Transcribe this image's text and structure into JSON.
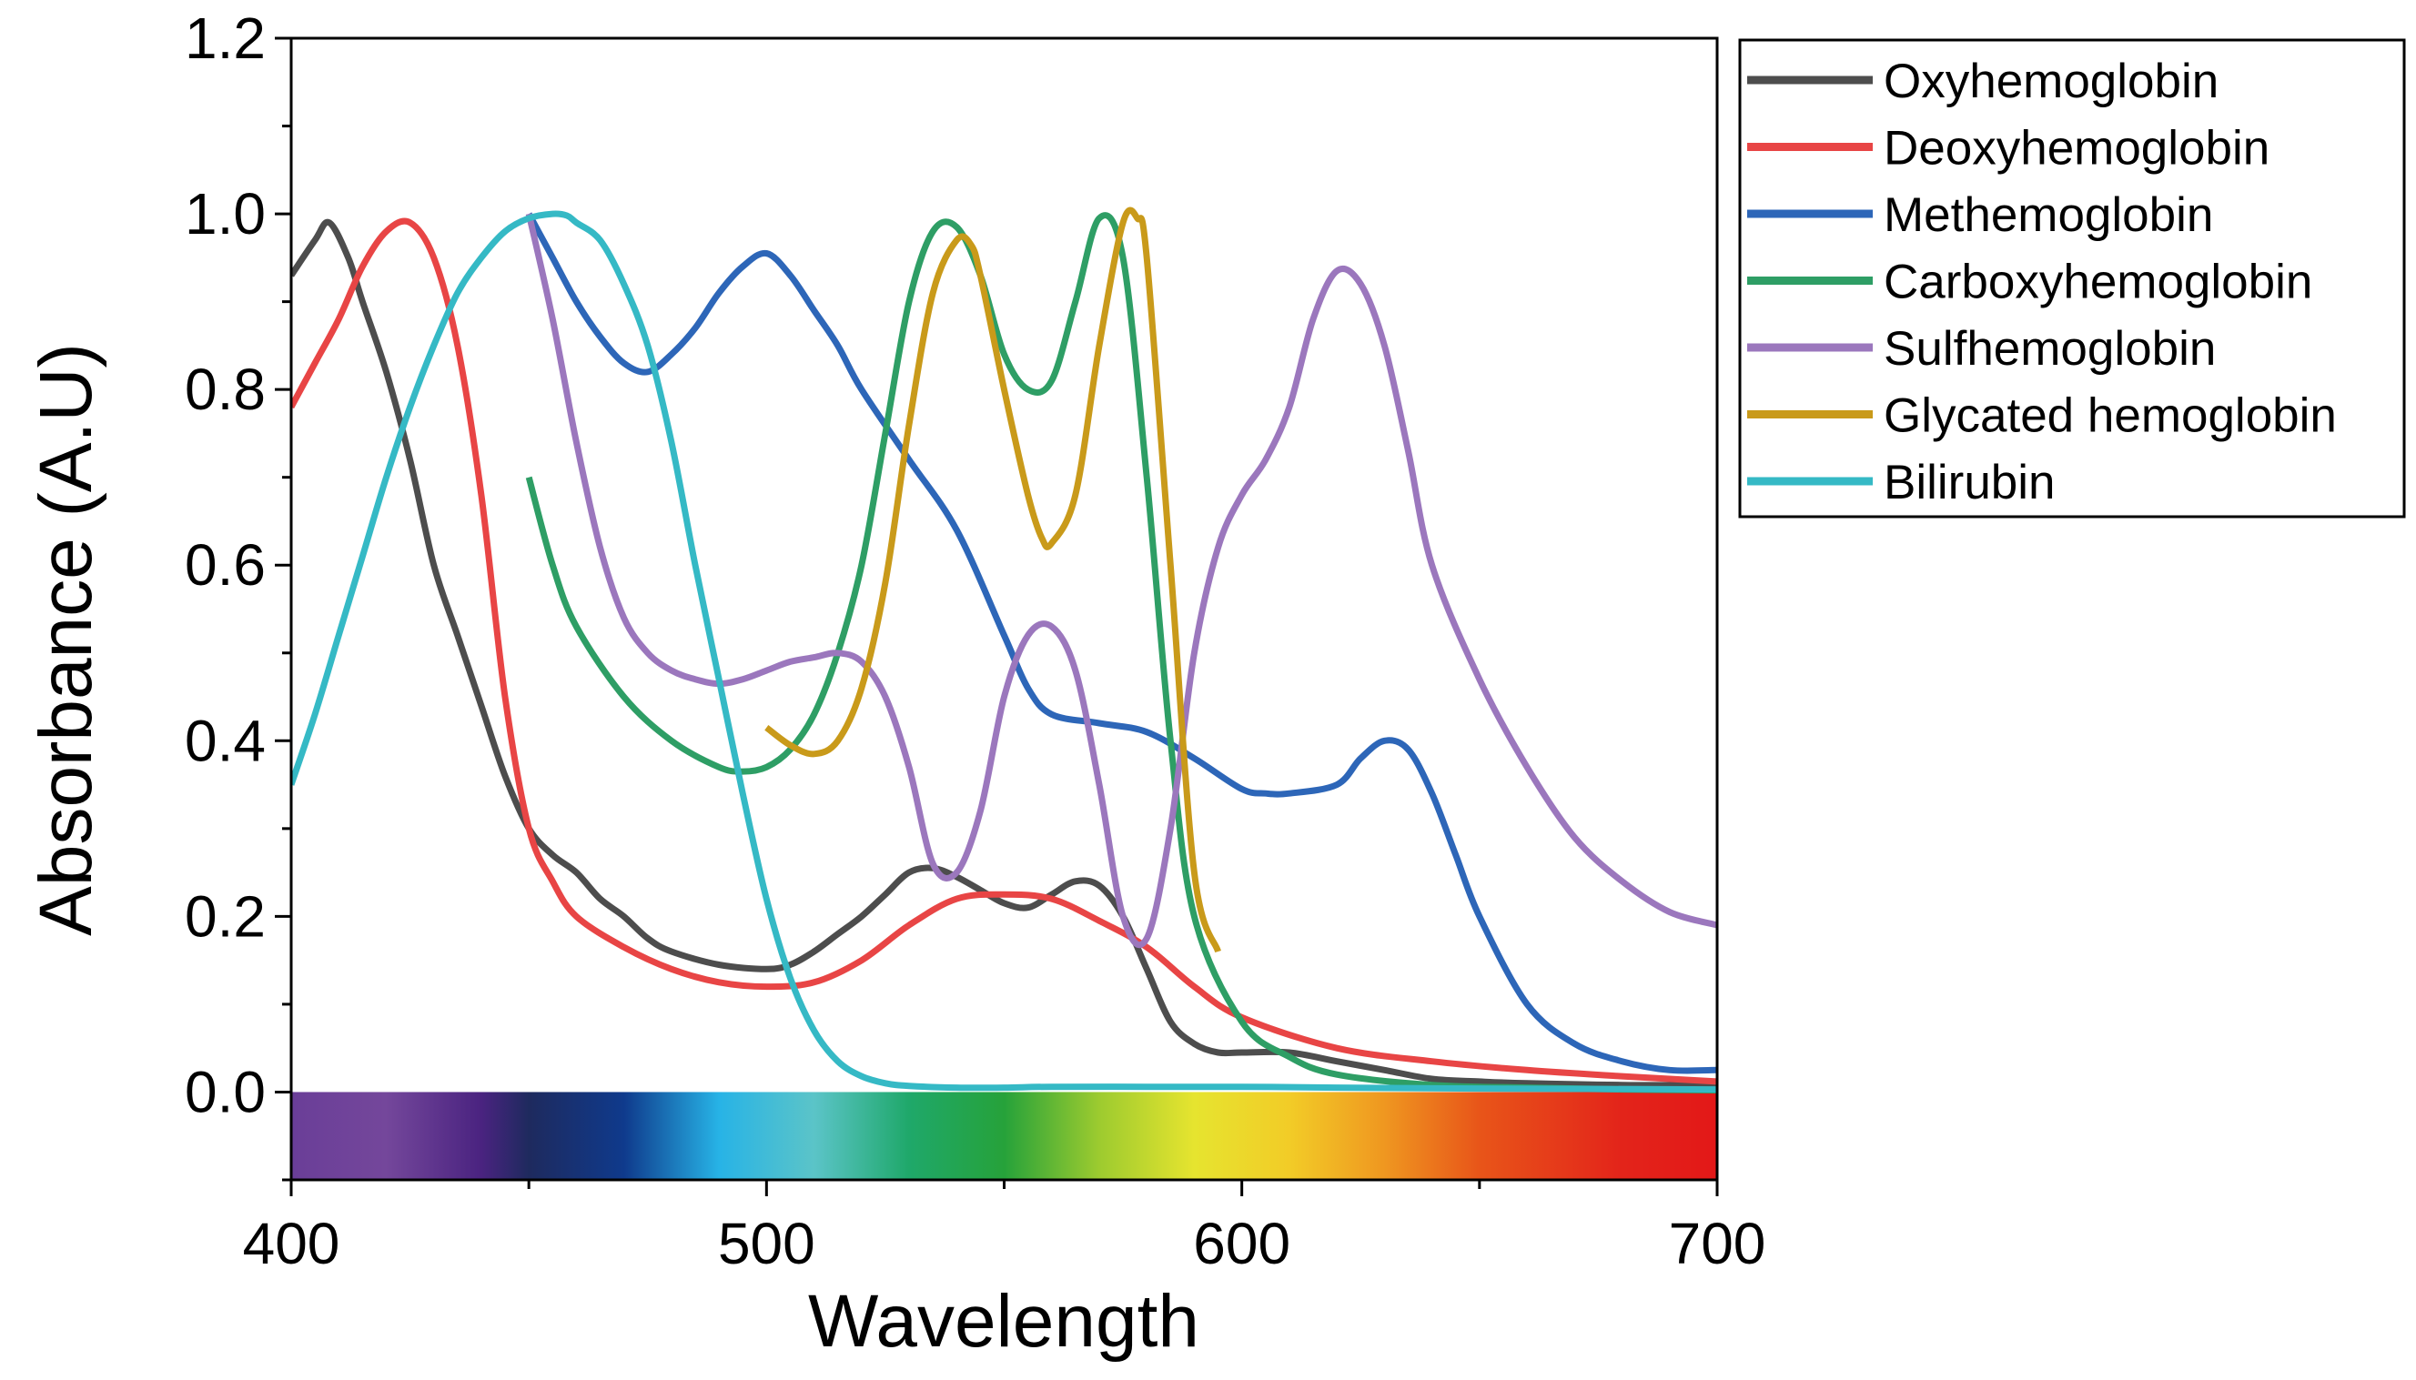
{
  "chart_data": {
    "type": "line",
    "title": "",
    "xlabel": "Wavelength",
    "ylabel": "Absorbance (A.U)",
    "xlim": [
      400,
      700
    ],
    "ylim": [
      -0.1,
      1.2
    ],
    "x_ticks": [
      400,
      500,
      600,
      700
    ],
    "x_tick_labels": [
      "400",
      "500",
      "600",
      "700"
    ],
    "y_ticks": [
      0.0,
      0.2,
      0.4,
      0.6,
      0.8,
      1.0,
      1.2
    ],
    "y_tick_labels": [
      "0.0",
      "0.2",
      "0.4",
      "0.6",
      "0.8",
      "1.0",
      "1.2"
    ],
    "legend_position": "outside-right-top",
    "spectrum_band": {
      "label": "visible spectrum",
      "y_range": [
        -0.1,
        0.0
      ],
      "stops": [
        {
          "wavelength": 400,
          "color": "#6a3e98"
        },
        {
          "wavelength": 420,
          "color": "#74479b"
        },
        {
          "wavelength": 440,
          "color": "#4a2380"
        },
        {
          "wavelength": 450,
          "color": "#1e2a5e"
        },
        {
          "wavelength": 470,
          "color": "#0f3a8c"
        },
        {
          "wavelength": 490,
          "color": "#27b3e6"
        },
        {
          "wavelength": 510,
          "color": "#5bc4c8"
        },
        {
          "wavelength": 530,
          "color": "#1fa86a"
        },
        {
          "wavelength": 550,
          "color": "#26a23a"
        },
        {
          "wavelength": 570,
          "color": "#9dcb2f"
        },
        {
          "wavelength": 590,
          "color": "#e6e42f"
        },
        {
          "wavelength": 610,
          "color": "#f2cc27"
        },
        {
          "wavelength": 630,
          "color": "#ef9720"
        },
        {
          "wavelength": 650,
          "color": "#e85519"
        },
        {
          "wavelength": 680,
          "color": "#e3241a"
        },
        {
          "wavelength": 700,
          "color": "#e31818"
        }
      ]
    },
    "series": [
      {
        "name": "Oxyhemoglobin",
        "color": "#4d4d4d",
        "x": [
          400,
          405,
          408,
          412,
          415,
          420,
          425,
          430,
          435,
          440,
          445,
          450,
          455,
          460,
          465,
          470,
          475,
          480,
          490,
          500,
          505,
          510,
          515,
          520,
          525,
          530,
          535,
          540,
          545,
          550,
          555,
          560,
          565,
          570,
          575,
          580,
          585,
          590,
          595,
          600,
          610,
          620,
          630,
          640,
          650,
          660,
          680,
          700
        ],
        "values": [
          0.93,
          0.97,
          0.99,
          0.95,
          0.9,
          0.82,
          0.72,
          0.6,
          0.52,
          0.44,
          0.36,
          0.3,
          0.27,
          0.25,
          0.22,
          0.2,
          0.175,
          0.16,
          0.145,
          0.14,
          0.145,
          0.16,
          0.18,
          0.2,
          0.225,
          0.25,
          0.255,
          0.245,
          0.23,
          0.215,
          0.21,
          0.225,
          0.24,
          0.235,
          0.2,
          0.14,
          0.08,
          0.055,
          0.045,
          0.045,
          0.045,
          0.035,
          0.025,
          0.015,
          0.012,
          0.01,
          0.008,
          0.008
        ]
      },
      {
        "name": "Deoxyhemoglobin",
        "color": "#e84545",
        "x": [
          400,
          405,
          410,
          415,
          420,
          425,
          430,
          435,
          440,
          445,
          450,
          455,
          460,
          470,
          480,
          490,
          500,
          510,
          520,
          530,
          540,
          550,
          560,
          570,
          580,
          590,
          600,
          620,
          640,
          660,
          680,
          700
        ],
        "values": [
          0.78,
          0.83,
          0.88,
          0.94,
          0.98,
          0.99,
          0.95,
          0.85,
          0.68,
          0.45,
          0.3,
          0.24,
          0.2,
          0.165,
          0.14,
          0.125,
          0.12,
          0.125,
          0.15,
          0.19,
          0.22,
          0.225,
          0.22,
          0.195,
          0.165,
          0.12,
          0.085,
          0.05,
          0.035,
          0.025,
          0.018,
          0.012
        ]
      },
      {
        "name": "Methemoglobin",
        "color": "#2d66b8",
        "x": [
          450,
          455,
          460,
          465,
          470,
          475,
          480,
          485,
          490,
          495,
          500,
          505,
          510,
          515,
          520,
          530,
          540,
          550,
          555,
          560,
          570,
          580,
          590,
          600,
          605,
          610,
          620,
          625,
          630,
          635,
          640,
          645,
          650,
          660,
          670,
          680,
          690,
          700
        ],
        "values": [
          1.0,
          0.95,
          0.9,
          0.86,
          0.83,
          0.82,
          0.84,
          0.87,
          0.91,
          0.94,
          0.955,
          0.93,
          0.89,
          0.85,
          0.8,
          0.72,
          0.64,
          0.52,
          0.46,
          0.43,
          0.42,
          0.41,
          0.38,
          0.345,
          0.34,
          0.34,
          0.35,
          0.38,
          0.4,
          0.39,
          0.34,
          0.27,
          0.2,
          0.1,
          0.055,
          0.035,
          0.025,
          0.025
        ]
      },
      {
        "name": "Carboxyhemoglobin",
        "color": "#2e9e65",
        "x": [
          450,
          455,
          460,
          470,
          480,
          490,
          495,
          500,
          505,
          510,
          515,
          520,
          525,
          530,
          535,
          540,
          545,
          550,
          555,
          560,
          565,
          570,
          575,
          580,
          585,
          590,
          600,
          610,
          620,
          640,
          660,
          680,
          700
        ],
        "values": [
          0.7,
          0.6,
          0.53,
          0.45,
          0.4,
          0.37,
          0.365,
          0.37,
          0.39,
          0.43,
          0.5,
          0.6,
          0.75,
          0.9,
          0.98,
          0.985,
          0.93,
          0.84,
          0.8,
          0.81,
          0.9,
          0.995,
          0.95,
          0.7,
          0.4,
          0.2,
          0.08,
          0.04,
          0.02,
          0.008,
          0.005,
          0.003,
          0.002
        ]
      },
      {
        "name": "Sulfhemoglobin",
        "color": "#9b77bd",
        "x": [
          450,
          455,
          460,
          465,
          470,
          475,
          480,
          485,
          490,
          495,
          500,
          505,
          510,
          515,
          520,
          525,
          530,
          535,
          540,
          545,
          550,
          555,
          560,
          565,
          570,
          575,
          580,
          585,
          590,
          595,
          600,
          605,
          610,
          615,
          620,
          625,
          630,
          635,
          640,
          650,
          660,
          670,
          680,
          690,
          700
        ],
        "values": [
          1.0,
          0.88,
          0.74,
          0.62,
          0.54,
          0.5,
          0.48,
          0.47,
          0.465,
          0.47,
          0.48,
          0.49,
          0.495,
          0.5,
          0.49,
          0.45,
          0.37,
          0.26,
          0.25,
          0.32,
          0.45,
          0.52,
          0.53,
          0.48,
          0.35,
          0.2,
          0.175,
          0.3,
          0.5,
          0.62,
          0.68,
          0.72,
          0.78,
          0.88,
          0.935,
          0.92,
          0.85,
          0.73,
          0.6,
          0.47,
          0.37,
          0.29,
          0.24,
          0.205,
          0.19
        ]
      },
      {
        "name": "Glycated hemoglobin",
        "color": "#c99a1a",
        "x": [
          500,
          505,
          510,
          515,
          520,
          525,
          530,
          535,
          540,
          543,
          545,
          550,
          555,
          558,
          560,
          565,
          570,
          575,
          578,
          580,
          585,
          590,
          595
        ],
        "values": [
          0.415,
          0.395,
          0.385,
          0.4,
          0.46,
          0.58,
          0.76,
          0.91,
          0.97,
          0.965,
          0.93,
          0.8,
          0.68,
          0.63,
          0.625,
          0.68,
          0.85,
          0.99,
          0.995,
          0.95,
          0.6,
          0.25,
          0.16
        ]
      },
      {
        "name": "Bilirubin",
        "color": "#35b9c5",
        "x": [
          400,
          405,
          410,
          415,
          420,
          425,
          430,
          435,
          440,
          445,
          450,
          455,
          458,
          460,
          465,
          470,
          475,
          480,
          485,
          490,
          495,
          500,
          505,
          510,
          515,
          520,
          525,
          530,
          540,
          550,
          560,
          580,
          600,
          620,
          650,
          700
        ],
        "values": [
          0.35,
          0.43,
          0.52,
          0.61,
          0.7,
          0.78,
          0.85,
          0.91,
          0.95,
          0.98,
          0.995,
          1.0,
          0.998,
          0.99,
          0.97,
          0.92,
          0.85,
          0.74,
          0.6,
          0.47,
          0.34,
          0.22,
          0.13,
          0.07,
          0.035,
          0.018,
          0.01,
          0.007,
          0.005,
          0.005,
          0.006,
          0.006,
          0.006,
          0.005,
          0.004,
          0.003
        ]
      }
    ]
  }
}
